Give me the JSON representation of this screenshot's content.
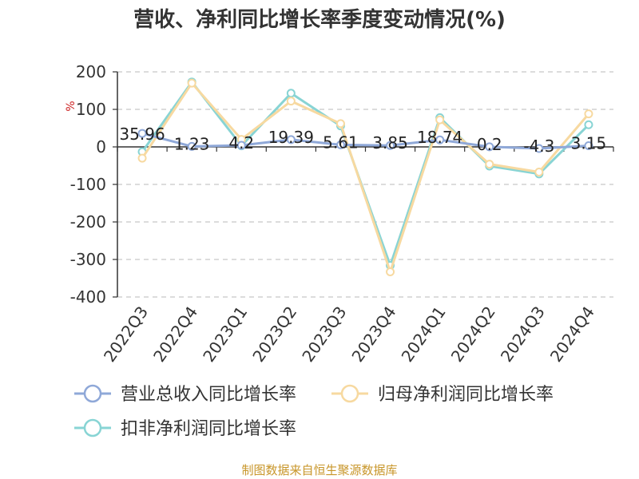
{
  "chart_data": {
    "type": "line",
    "title": "营收、净利同比增长率季度变动情况(%)",
    "unit": "%",
    "categories": [
      "2022Q3",
      "2022Q4",
      "2023Q1",
      "2023Q2",
      "2023Q3",
      "2023Q4",
      "2024Q1",
      "2024Q2",
      "2024Q3",
      "2024Q4"
    ],
    "ylim": [
      -400,
      200
    ],
    "yticks": [
      200,
      100,
      0,
      -100,
      -200,
      -300,
      -400
    ],
    "grid": true,
    "legend_position": "bottom",
    "series": [
      {
        "name": "营业总收入同比增长率",
        "color": "#8fa8d8",
        "values": [
          35.96,
          1.23,
          4.2,
          19.39,
          5.61,
          3.85,
          18.74,
          0.2,
          -4.3,
          3.15
        ],
        "data_labels": [
          "35.96",
          "1.23",
          "4.2",
          "19.39",
          "5.61",
          "3.85",
          "18.74",
          "0.2",
          "-4.3",
          "3.15"
        ]
      },
      {
        "name": "归母净利润同比增长率",
        "color": "#f7d9a0",
        "values": [
          -30,
          170,
          20,
          122,
          62,
          -333,
          72,
          -46,
          -67,
          88
        ]
      },
      {
        "name": "扣非净利润同比增长率",
        "color": "#88d4d4",
        "values": [
          -13,
          173,
          3,
          143,
          56,
          -316,
          78,
          -51,
          -72,
          59
        ]
      }
    ]
  },
  "footer": {
    "source": "制图数据来自恒生聚源数据库"
  }
}
